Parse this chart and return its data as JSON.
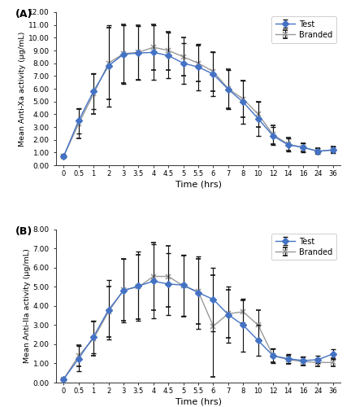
{
  "timepoints_labels": [
    "0",
    "0.5",
    "1",
    "2",
    "3",
    "3.5",
    "4",
    "4.5",
    "5",
    "5.5",
    "6",
    "7",
    "8",
    "10",
    "12",
    "14",
    "16",
    "24",
    "36"
  ],
  "timepoints_x": [
    0,
    1,
    2,
    3,
    4,
    5,
    6,
    7,
    8,
    9,
    10,
    11,
    12,
    13,
    14,
    15,
    16,
    17,
    18
  ],
  "A_test_mean": [
    0.7,
    3.5,
    5.8,
    7.8,
    8.7,
    8.8,
    8.85,
    8.6,
    8.0,
    7.7,
    7.15,
    5.95,
    4.95,
    3.65,
    2.3,
    1.6,
    1.4,
    1.1,
    1.2
  ],
  "A_test_err": [
    0.1,
    1.0,
    1.4,
    3.2,
    2.3,
    2.1,
    2.15,
    1.8,
    1.6,
    1.8,
    1.7,
    1.55,
    1.7,
    1.35,
    0.7,
    0.5,
    0.35,
    0.22,
    0.25
  ],
  "A_brand_mean": [
    0.7,
    3.25,
    5.6,
    8.0,
    8.75,
    8.85,
    9.25,
    9.0,
    8.5,
    8.0,
    7.35,
    6.0,
    5.2,
    4.0,
    2.4,
    1.65,
    1.4,
    1.1,
    1.2
  ],
  "A_brand_err": [
    0.1,
    1.15,
    1.55,
    2.8,
    2.3,
    2.15,
    1.8,
    1.5,
    1.5,
    1.4,
    1.55,
    1.55,
    1.45,
    1.0,
    0.75,
    0.5,
    0.3,
    0.22,
    0.25
  ],
  "B_test_mean": [
    0.18,
    1.25,
    2.4,
    3.8,
    4.8,
    5.05,
    5.3,
    5.15,
    5.1,
    4.7,
    4.35,
    3.55,
    3.0,
    2.2,
    1.4,
    1.25,
    1.15,
    1.2,
    1.5
  ],
  "B_test_err": [
    0.05,
    0.65,
    0.85,
    1.55,
    1.65,
    1.8,
    1.95,
    1.6,
    1.6,
    1.9,
    1.65,
    1.45,
    1.4,
    0.8,
    0.4,
    0.25,
    0.2,
    0.2,
    0.25
  ],
  "B_brand_mean": [
    0.18,
    1.4,
    2.3,
    3.7,
    4.85,
    5.0,
    5.55,
    5.55,
    5.05,
    4.75,
    2.95,
    3.6,
    3.7,
    3.0,
    1.4,
    1.2,
    1.1,
    1.05,
    1.05
  ],
  "B_brand_err": [
    0.05,
    0.55,
    0.9,
    1.3,
    1.6,
    1.7,
    1.75,
    1.6,
    1.6,
    1.7,
    2.65,
    1.25,
    0.6,
    0.8,
    0.35,
    0.22,
    0.2,
    0.18,
    0.22
  ],
  "test_color": "#4472C4",
  "brand_color": "#999999",
  "line_width": 1.0,
  "marker_size_test": 4,
  "marker_size_brand": 5,
  "cap_size": 2,
  "error_linewidth": 0.8,
  "error_color": "#111111",
  "A_ylabel": "Mean Anti-Xa activity (µg/mL)",
  "B_ylabel": "Mean Anti-IIa activity (µg/mL)",
  "xlabel": "Time (hrs)",
  "A_ylim": [
    0,
    12.0
  ],
  "A_yticks": [
    0.0,
    1.0,
    2.0,
    3.0,
    4.0,
    5.0,
    6.0,
    7.0,
    8.0,
    9.0,
    10.0,
    11.0,
    12.0
  ],
  "B_ylim": [
    0,
    8.0
  ],
  "B_yticks": [
    0.0,
    1.0,
    2.0,
    3.0,
    4.0,
    5.0,
    6.0,
    7.0,
    8.0
  ],
  "A_label": "(A)",
  "B_label": "(B)",
  "legend_test": "Test",
  "legend_brand": "Branded",
  "bg_color": "#ffffff",
  "plot_bg": "#ffffff"
}
